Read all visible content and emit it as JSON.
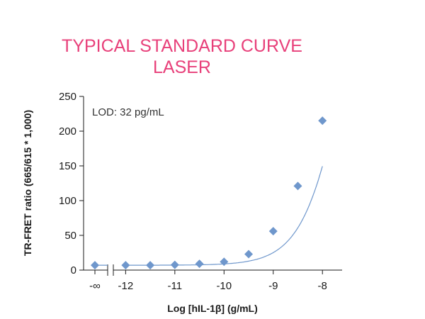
{
  "chart_data": {
    "type": "scatter",
    "title_lines": [
      "TYPICAL STANDARD CURVE",
      "LASER"
    ],
    "xlabel": "Log [hIL-1β] (g/mL)",
    "ylabel": "TR-FRET ratio (665/615 * 1,000)",
    "annotation": "LOD: 32 pg/mL",
    "ylim": [
      0,
      250
    ],
    "xlim": [
      -12.25,
      -7.6
    ],
    "y_ticks": [
      0,
      50,
      100,
      150,
      200,
      250
    ],
    "x_ticks": [
      -12,
      -11,
      -10,
      -9,
      -8
    ],
    "x_tick_labels": [
      "-12",
      "-11",
      "-10",
      "-9",
      "-8"
    ],
    "zero_tick_label": "-∞",
    "grid": false,
    "break_at_x": true,
    "series": [
      {
        "marker": "diamond",
        "color": "#6f97cc",
        "zero_point": {
          "x": "-∞",
          "y": 7
        },
        "points": [
          {
            "x": -12.0,
            "y": 7
          },
          {
            "x": -11.5,
            "y": 7
          },
          {
            "x": -11.0,
            "y": 7.5
          },
          {
            "x": -10.5,
            "y": 9
          },
          {
            "x": -10.0,
            "y": 12
          },
          {
            "x": -9.5,
            "y": 23
          },
          {
            "x": -9.0,
            "y": 56
          },
          {
            "x": -8.5,
            "y": 121
          },
          {
            "x": -8.0,
            "y": 215
          }
        ],
        "fit": {
          "model": "4PL",
          "bottom": 7,
          "top": 600,
          "logEC50": -7.5,
          "hill": 1.0
        }
      }
    ],
    "colors": {
      "title": "#e8407a",
      "series": "#6f97cc",
      "axis": "#1a1a1a"
    }
  }
}
